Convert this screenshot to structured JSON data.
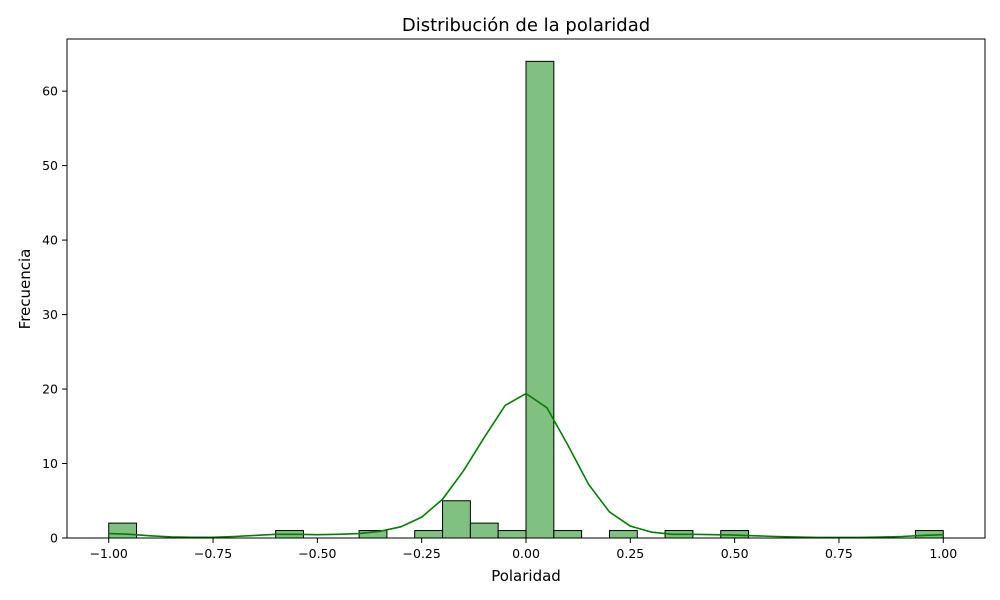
{
  "chart_data": {
    "type": "histogram",
    "title": "Distribución de la polaridad",
    "xlabel": "Polaridad",
    "ylabel": "Frecuencia",
    "xlim": [
      -1.1,
      1.1
    ],
    "ylim": [
      0,
      67
    ],
    "grid": false,
    "legend": "none",
    "bin_width": 0.0667,
    "bins": [
      {
        "x0": -1.0,
        "x1": -0.9333,
        "count": 2
      },
      {
        "x0": -0.6,
        "x1": -0.5333,
        "count": 1
      },
      {
        "x0": -0.4,
        "x1": -0.3333,
        "count": 1
      },
      {
        "x0": -0.2667,
        "x1": -0.2,
        "count": 1
      },
      {
        "x0": -0.2,
        "x1": -0.1333,
        "count": 5
      },
      {
        "x0": -0.1333,
        "x1": -0.0667,
        "count": 2
      },
      {
        "x0": -0.0667,
        "x1": 0.0,
        "count": 1
      },
      {
        "x0": 0.0,
        "x1": 0.0667,
        "count": 64
      },
      {
        "x0": 0.0667,
        "x1": 0.1333,
        "count": 1
      },
      {
        "x0": 0.2,
        "x1": 0.2667,
        "count": 1
      },
      {
        "x0": 0.3333,
        "x1": 0.4,
        "count": 1
      },
      {
        "x0": 0.4667,
        "x1": 0.5333,
        "count": 1
      },
      {
        "x0": 0.9333,
        "x1": 1.0,
        "count": 1
      }
    ],
    "kde": {
      "x": [
        -1.0,
        -0.95,
        -0.9,
        -0.85,
        -0.8,
        -0.75,
        -0.7,
        -0.65,
        -0.6,
        -0.55,
        -0.5,
        -0.45,
        -0.4,
        -0.35,
        -0.3,
        -0.25,
        -0.2,
        -0.15,
        -0.1,
        -0.05,
        0.0,
        0.05,
        0.1,
        0.15,
        0.2,
        0.25,
        0.3,
        0.35,
        0.4,
        0.45,
        0.5,
        0.55,
        0.6,
        0.65,
        0.7,
        0.75,
        0.8,
        0.85,
        0.9,
        0.95,
        1.0
      ],
      "y": [
        0.6,
        0.5,
        0.3,
        0.15,
        0.1,
        0.1,
        0.2,
        0.35,
        0.5,
        0.5,
        0.45,
        0.5,
        0.6,
        0.9,
        1.5,
        2.8,
        5.2,
        9.0,
        13.5,
        17.8,
        19.4,
        17.5,
        12.5,
        7.2,
        3.5,
        1.6,
        0.8,
        0.5,
        0.5,
        0.45,
        0.4,
        0.3,
        0.2,
        0.12,
        0.08,
        0.07,
        0.08,
        0.12,
        0.2,
        0.35,
        0.45
      ]
    },
    "x_ticks": [
      -1.0,
      -0.75,
      -0.5,
      -0.25,
      0.0,
      0.25,
      0.5,
      0.75,
      1.0
    ],
    "x_tick_labels": [
      "−1.00",
      "−0.75",
      "−0.50",
      "−0.25",
      "0.00",
      "0.25",
      "0.50",
      "0.75",
      "1.00"
    ],
    "y_ticks": [
      0,
      10,
      20,
      30,
      40,
      50,
      60
    ],
    "y_tick_labels": [
      "0",
      "10",
      "20",
      "30",
      "40",
      "50",
      "60"
    ],
    "colors": {
      "bar_fill": "#80c080",
      "bar_edge": "#000000",
      "kde_line": "#008000"
    }
  }
}
